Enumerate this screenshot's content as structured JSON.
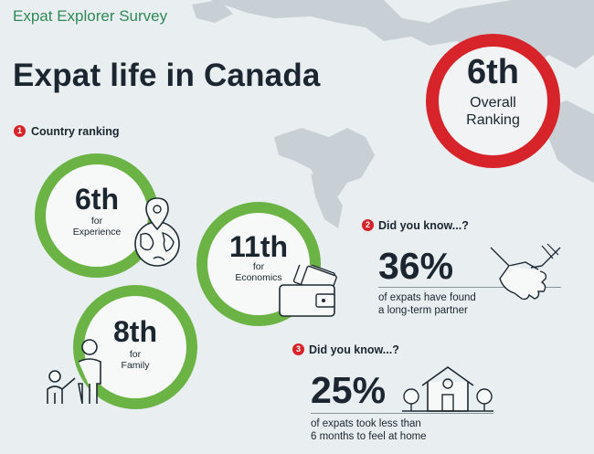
{
  "header": {
    "survey_title": "Expat Explorer Survey",
    "main_title": "Expat life in Canada"
  },
  "overall_badge": {
    "rank": "6th",
    "line1": "Overall",
    "line2": "Ranking",
    "color": "#d7242b"
  },
  "country_ranking": {
    "number": "1",
    "label": "Country ranking",
    "items": [
      {
        "rank": "6th",
        "for": "for",
        "category": "Experience",
        "icon": "globe-pin-icon"
      },
      {
        "rank": "11th",
        "for": "for",
        "category": "Economics",
        "icon": "wallet-icon"
      },
      {
        "rank": "8th",
        "for": "for",
        "category": "Family",
        "icon": "family-icon"
      }
    ],
    "ring_color": "#6ab344"
  },
  "did_you_know": [
    {
      "number": "2",
      "label": "Did you know...?",
      "percent": "36%",
      "line1": "of expats have found",
      "line2": "a long-term partner",
      "icon": "handshake-icon"
    },
    {
      "number": "3",
      "label": "Did you know...?",
      "percent": "25%",
      "line1": "of expats took less than",
      "line2": "6 months to feel at home",
      "icon": "house-icon"
    }
  ]
}
